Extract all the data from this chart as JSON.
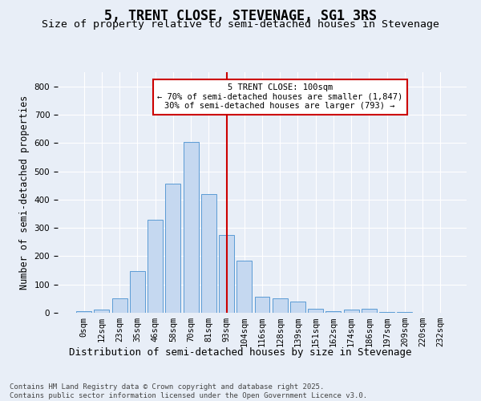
{
  "title": "5, TRENT CLOSE, STEVENAGE, SG1 3RS",
  "subtitle": "Size of property relative to semi-detached houses in Stevenage",
  "xlabel": "Distribution of semi-detached houses by size in Stevenage",
  "ylabel": "Number of semi-detached properties",
  "bar_labels": [
    "0sqm",
    "12sqm",
    "23sqm",
    "35sqm",
    "46sqm",
    "58sqm",
    "70sqm",
    "81sqm",
    "93sqm",
    "104sqm",
    "116sqm",
    "128sqm",
    "139sqm",
    "151sqm",
    "162sqm",
    "174sqm",
    "186sqm",
    "197sqm",
    "209sqm",
    "220sqm",
    "232sqm"
  ],
  "bar_values": [
    5,
    10,
    52,
    148,
    328,
    455,
    604,
    418,
    275,
    185,
    58,
    52,
    40,
    13,
    7,
    10,
    13,
    3,
    2,
    0,
    0
  ],
  "bar_color": "#c5d8f0",
  "bar_edge_color": "#5b9bd5",
  "vline_x": 8.0,
  "vline_color": "#cc0000",
  "annotation_text": "5 TRENT CLOSE: 100sqm\n← 70% of semi-detached houses are smaller (1,847)\n30% of semi-detached houses are larger (793) →",
  "annotation_box_facecolor": "#ffffff",
  "annotation_box_edgecolor": "#cc0000",
  "ylim": [
    0,
    850
  ],
  "yticks": [
    0,
    100,
    200,
    300,
    400,
    500,
    600,
    700,
    800
  ],
  "background_color": "#e8eef7",
  "grid_color": "#ffffff",
  "footer_text": "Contains HM Land Registry data © Crown copyright and database right 2025.\nContains public sector information licensed under the Open Government Licence v3.0.",
  "title_fontsize": 12,
  "subtitle_fontsize": 9.5,
  "ylabel_fontsize": 8.5,
  "xlabel_fontsize": 9,
  "tick_fontsize": 7.5,
  "annotation_fontsize": 7.5,
  "footer_fontsize": 6.5
}
